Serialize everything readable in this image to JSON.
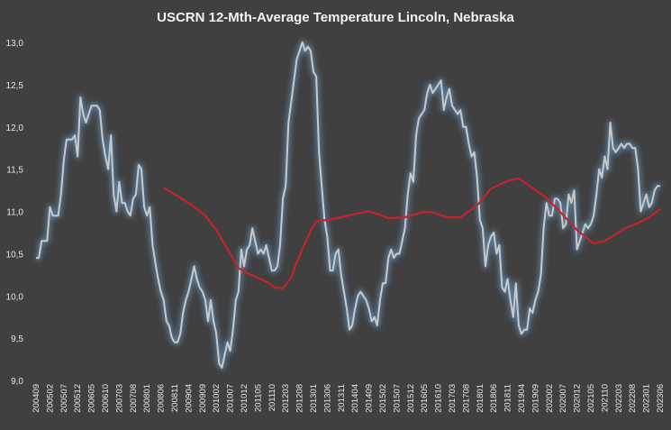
{
  "chart_data": {
    "type": "line",
    "title": "USCRN 12-Mth-Average Temperature Lincoln, Nebraska",
    "xlabel": "",
    "ylabel": "",
    "ylim": [
      9.0,
      13.0
    ],
    "yticks": [
      "9,0",
      "9,5",
      "10,0",
      "10,5",
      "11,0",
      "11,5",
      "12,0",
      "12,5",
      "13,0"
    ],
    "ytick_values": [
      9.0,
      9.5,
      10.0,
      10.5,
      11.0,
      11.5,
      12.0,
      12.5,
      13.0
    ],
    "x_start": "200409",
    "x_end": "202306",
    "x_tick_step_months": 5,
    "grid": false,
    "legend": "none",
    "series": [
      {
        "color": "#c9c9c9",
        "glow_color": "#6fa8dc",
        "points": [
          [
            "200409",
            10.45
          ],
          [
            "200410",
            10.45
          ],
          [
            "200411",
            10.65
          ],
          [
            "200412",
            10.65
          ],
          [
            "200501",
            10.65
          ],
          [
            "200502",
            11.05
          ],
          [
            "200503",
            10.95
          ],
          [
            "200504",
            10.95
          ],
          [
            "200505",
            10.95
          ],
          [
            "200506",
            11.2
          ],
          [
            "200507",
            11.6
          ],
          [
            "200508",
            11.85
          ],
          [
            "200509",
            11.85
          ],
          [
            "200510",
            11.85
          ],
          [
            "200511",
            11.9
          ],
          [
            "200512",
            11.65
          ],
          [
            "200601",
            12.35
          ],
          [
            "200602",
            12.15
          ],
          [
            "200603",
            12.05
          ],
          [
            "200604",
            12.15
          ],
          [
            "200605",
            12.25
          ],
          [
            "200606",
            12.25
          ],
          [
            "200607",
            12.25
          ],
          [
            "200608",
            12.2
          ],
          [
            "200609",
            11.85
          ],
          [
            "200610",
            11.65
          ],
          [
            "200611",
            11.5
          ],
          [
            "200612",
            11.9
          ],
          [
            "200701",
            11.2
          ],
          [
            "200702",
            11.0
          ],
          [
            "200703",
            11.35
          ],
          [
            "200704",
            11.1
          ],
          [
            "200705",
            11.1
          ],
          [
            "200706",
            11.0
          ],
          [
            "200707",
            10.95
          ],
          [
            "200708",
            11.15
          ],
          [
            "200709",
            11.2
          ],
          [
            "200710",
            11.55
          ],
          [
            "200711",
            11.5
          ],
          [
            "200712",
            11.05
          ],
          [
            "200801",
            10.95
          ],
          [
            "200802",
            11.05
          ],
          [
            "200803",
            10.6
          ],
          [
            "200804",
            10.4
          ],
          [
            "200805",
            10.2
          ],
          [
            "200806",
            10.05
          ],
          [
            "200807",
            9.95
          ],
          [
            "200808",
            9.7
          ],
          [
            "200809",
            9.65
          ],
          [
            "200810",
            9.5
          ],
          [
            "200811",
            9.45
          ],
          [
            "200812",
            9.45
          ],
          [
            "200901",
            9.55
          ],
          [
            "200902",
            9.8
          ],
          [
            "200903",
            9.95
          ],
          [
            "200904",
            10.05
          ],
          [
            "200905",
            10.2
          ],
          [
            "200906",
            10.35
          ],
          [
            "200907",
            10.2
          ],
          [
            "200908",
            10.1
          ],
          [
            "200909",
            10.05
          ],
          [
            "200910",
            9.95
          ],
          [
            "200911",
            9.7
          ],
          [
            "200912",
            9.95
          ],
          [
            "201001",
            9.7
          ],
          [
            "201002",
            9.55
          ],
          [
            "201003",
            9.2
          ],
          [
            "201004",
            9.15
          ],
          [
            "201005",
            9.3
          ],
          [
            "201006",
            9.45
          ],
          [
            "201007",
            9.35
          ],
          [
            "201008",
            9.6
          ],
          [
            "201009",
            9.95
          ],
          [
            "201010",
            10.05
          ],
          [
            "201011",
            10.55
          ],
          [
            "201012",
            10.35
          ],
          [
            "201101",
            10.55
          ],
          [
            "201102",
            10.6
          ],
          [
            "201103",
            10.8
          ],
          [
            "201104",
            10.65
          ],
          [
            "201105",
            10.5
          ],
          [
            "201106",
            10.55
          ],
          [
            "201107",
            10.5
          ],
          [
            "201108",
            10.6
          ],
          [
            "201109",
            10.45
          ],
          [
            "201110",
            10.3
          ],
          [
            "201111",
            10.3
          ],
          [
            "201112",
            10.35
          ],
          [
            "201201",
            10.6
          ],
          [
            "201202",
            11.15
          ],
          [
            "201203",
            11.3
          ],
          [
            "201204",
            12.05
          ],
          [
            "201205",
            12.3
          ],
          [
            "201206",
            12.55
          ],
          [
            "201207",
            12.8
          ],
          [
            "201208",
            12.9
          ],
          [
            "201209",
            13.0
          ],
          [
            "201210",
            12.9
          ],
          [
            "201211",
            12.95
          ],
          [
            "201212",
            12.9
          ],
          [
            "201301",
            12.65
          ],
          [
            "201302",
            12.6
          ],
          [
            "201303",
            11.7
          ],
          [
            "201304",
            11.3
          ],
          [
            "201305",
            10.9
          ],
          [
            "201306",
            10.7
          ],
          [
            "201307",
            10.3
          ],
          [
            "201308",
            10.3
          ],
          [
            "201309",
            10.5
          ],
          [
            "201310",
            10.55
          ],
          [
            "201311",
            10.25
          ],
          [
            "201312",
            10.05
          ],
          [
            "201401",
            9.85
          ],
          [
            "201402",
            9.6
          ],
          [
            "201403",
            9.65
          ],
          [
            "201404",
            9.85
          ],
          [
            "201405",
            10.0
          ],
          [
            "201406",
            10.05
          ],
          [
            "201407",
            10.0
          ],
          [
            "201408",
            9.95
          ],
          [
            "201409",
            9.85
          ],
          [
            "201410",
            9.7
          ],
          [
            "201411",
            9.75
          ],
          [
            "201412",
            9.65
          ],
          [
            "201501",
            9.95
          ],
          [
            "201502",
            10.15
          ],
          [
            "201503",
            10.15
          ],
          [
            "201504",
            10.45
          ],
          [
            "201505",
            10.55
          ],
          [
            "201506",
            10.45
          ],
          [
            "201507",
            10.5
          ],
          [
            "201508",
            10.5
          ],
          [
            "201509",
            10.65
          ],
          [
            "201510",
            10.8
          ],
          [
            "201511",
            11.2
          ],
          [
            "201512",
            11.45
          ],
          [
            "201601",
            11.35
          ],
          [
            "201602",
            11.9
          ],
          [
            "201603",
            12.1
          ],
          [
            "201604",
            12.15
          ],
          [
            "201605",
            12.2
          ],
          [
            "201606",
            12.4
          ],
          [
            "201607",
            12.5
          ],
          [
            "201608",
            12.4
          ],
          [
            "201609",
            12.45
          ],
          [
            "201610",
            12.5
          ],
          [
            "201611",
            12.55
          ],
          [
            "201612",
            12.2
          ],
          [
            "201701",
            12.35
          ],
          [
            "201702",
            12.45
          ],
          [
            "201703",
            12.25
          ],
          [
            "201704",
            12.2
          ],
          [
            "201705",
            12.15
          ],
          [
            "201706",
            12.2
          ],
          [
            "201707",
            12.0
          ],
          [
            "201708",
            12.0
          ],
          [
            "201709",
            11.8
          ],
          [
            "201710",
            11.65
          ],
          [
            "201711",
            11.7
          ],
          [
            "201712",
            11.4
          ],
          [
            "201801",
            10.9
          ],
          [
            "201802",
            10.8
          ],
          [
            "201803",
            10.35
          ],
          [
            "201804",
            10.6
          ],
          [
            "201805",
            10.7
          ],
          [
            "201806",
            10.75
          ],
          [
            "201807",
            10.5
          ],
          [
            "201808",
            10.6
          ],
          [
            "201809",
            10.1
          ],
          [
            "201810",
            10.05
          ],
          [
            "201811",
            10.2
          ],
          [
            "201812",
            9.95
          ],
          [
            "201901",
            9.75
          ],
          [
            "201902",
            10.15
          ],
          [
            "201903",
            9.65
          ],
          [
            "201904",
            9.55
          ],
          [
            "201905",
            9.6
          ],
          [
            "201906",
            9.6
          ],
          [
            "201907",
            9.85
          ],
          [
            "201908",
            9.8
          ],
          [
            "201909",
            9.95
          ],
          [
            "201910",
            10.05
          ],
          [
            "201911",
            10.25
          ],
          [
            "201912",
            10.8
          ],
          [
            "202001",
            11.1
          ],
          [
            "202002",
            10.95
          ],
          [
            "202003",
            10.95
          ],
          [
            "202004",
            11.15
          ],
          [
            "202005",
            11.15
          ],
          [
            "202006",
            11.1
          ],
          [
            "202007",
            10.8
          ],
          [
            "202008",
            10.85
          ],
          [
            "202009",
            11.2
          ],
          [
            "202010",
            11.1
          ],
          [
            "202011",
            11.25
          ],
          [
            "202012",
            10.55
          ],
          [
            "202101",
            10.65
          ],
          [
            "202102",
            10.75
          ],
          [
            "202103",
            10.85
          ],
          [
            "202104",
            10.8
          ],
          [
            "202105",
            10.85
          ],
          [
            "202106",
            10.95
          ],
          [
            "202107",
            11.2
          ],
          [
            "202108",
            11.5
          ],
          [
            "202109",
            11.4
          ],
          [
            "202110",
            11.65
          ],
          [
            "202111",
            11.5
          ],
          [
            "202112",
            12.05
          ],
          [
            "202201",
            11.75
          ],
          [
            "202202",
            11.7
          ],
          [
            "202203",
            11.75
          ],
          [
            "202204",
            11.8
          ],
          [
            "202205",
            11.75
          ],
          [
            "202206",
            11.8
          ],
          [
            "202207",
            11.8
          ],
          [
            "202208",
            11.75
          ],
          [
            "202209",
            11.75
          ],
          [
            "202210",
            11.5
          ],
          [
            "202211",
            11.0
          ],
          [
            "202212",
            11.1
          ],
          [
            "202301",
            11.2
          ],
          [
            "202302",
            11.05
          ],
          [
            "202303",
            11.1
          ],
          [
            "202304",
            11.25
          ],
          [
            "202305",
            11.3
          ],
          [
            "202306",
            11.3
          ]
        ]
      },
      {
        "color": "#c0262b",
        "points": [
          [
            "200807",
            11.28
          ],
          [
            "200812",
            11.18
          ],
          [
            "200905",
            11.08
          ],
          [
            "200910",
            10.95
          ],
          [
            "201002",
            10.78
          ],
          [
            "201007",
            10.5
          ],
          [
            "201010",
            10.33
          ],
          [
            "201101",
            10.27
          ],
          [
            "201106",
            10.2
          ],
          [
            "201109",
            10.15
          ],
          [
            "201111",
            10.1
          ],
          [
            "201202",
            10.09
          ],
          [
            "201205",
            10.22
          ],
          [
            "201208",
            10.48
          ],
          [
            "201212",
            10.77
          ],
          [
            "201302",
            10.88
          ],
          [
            "201306",
            10.9
          ],
          [
            "201311",
            10.93
          ],
          [
            "201404",
            10.97
          ],
          [
            "201409",
            11.0
          ],
          [
            "201412",
            10.97
          ],
          [
            "201504",
            10.92
          ],
          [
            "201510",
            10.93
          ],
          [
            "201604",
            10.99
          ],
          [
            "201608",
            10.99
          ],
          [
            "201701",
            10.93
          ],
          [
            "201706",
            10.93
          ],
          [
            "201712",
            11.07
          ],
          [
            "201805",
            11.27
          ],
          [
            "201811",
            11.36
          ],
          [
            "201903",
            11.39
          ],
          [
            "201907",
            11.3
          ],
          [
            "202001",
            11.16
          ],
          [
            "202006",
            10.99
          ],
          [
            "202012",
            10.78
          ],
          [
            "202106",
            10.62
          ],
          [
            "202110",
            10.65
          ],
          [
            "202202",
            10.73
          ],
          [
            "202206",
            10.81
          ],
          [
            "202210",
            10.86
          ],
          [
            "202302",
            10.93
          ],
          [
            "202306",
            11.03
          ]
        ]
      }
    ]
  }
}
